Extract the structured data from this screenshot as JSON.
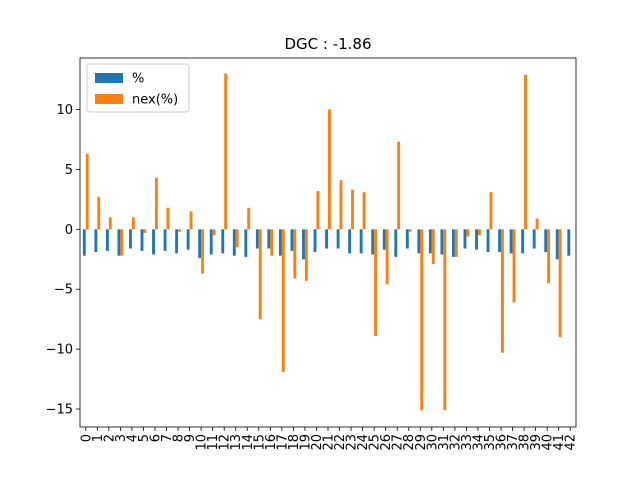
{
  "chart_data": {
    "type": "bar",
    "title": "DGC : -1.86",
    "xlabel": "",
    "ylabel": "",
    "ylim": [
      -16.5,
      14.3
    ],
    "yticks": [
      -15,
      -10,
      -5,
      0,
      5,
      10
    ],
    "ytick_labels": [
      "−15",
      "−10",
      "−5",
      "0",
      "5",
      "10"
    ],
    "grid": false,
    "legend_position": "upper-left",
    "categories": [
      "0",
      "1",
      "2",
      "3",
      "4",
      "5",
      "6",
      "7",
      "8",
      "9",
      "10",
      "11",
      "12",
      "13",
      "14",
      "15",
      "16",
      "17",
      "18",
      "19",
      "20",
      "21",
      "22",
      "23",
      "24",
      "25",
      "26",
      "27",
      "28",
      "29",
      "30",
      "31",
      "32",
      "33",
      "34",
      "35",
      "36",
      "37",
      "38",
      "39",
      "40",
      "41",
      "42"
    ],
    "series": [
      {
        "name": "%",
        "color": "#1f77b4",
        "values": [
          -2.2,
          -1.9,
          -1.8,
          -2.2,
          -1.6,
          -1.8,
          -2.1,
          -1.8,
          -2.0,
          -1.7,
          -2.4,
          -2.1,
          -2.0,
          -2.2,
          -2.3,
          -1.6,
          -1.6,
          -2.2,
          -1.8,
          -2.5,
          -1.9,
          -1.6,
          -1.6,
          -2.0,
          -2.0,
          -2.1,
          -1.7,
          -2.3,
          -1.6,
          -2.0,
          -2.0,
          -2.1,
          -2.3,
          -1.6,
          -1.7,
          -1.9,
          -1.9,
          -2.0,
          -2.0,
          -1.6,
          -1.9,
          -2.5,
          -2.2
        ]
      },
      {
        "name": "nex(%)",
        "color": "#ff7f0e",
        "values": [
          6.3,
          2.7,
          1.0,
          -2.2,
          1.0,
          -0.3,
          4.3,
          1.8,
          -0.2,
          1.5,
          -3.7,
          -0.5,
          13.0,
          -1.5,
          1.8,
          -7.5,
          -2.2,
          -11.9,
          -4.1,
          -4.3,
          3.2,
          10.0,
          4.1,
          3.3,
          3.1,
          -8.9,
          -4.6,
          7.3,
          -0.2,
          -15.1,
          -2.9,
          -15.1,
          -2.3,
          -0.6,
          -0.5,
          3.1,
          -10.3,
          -6.1,
          12.9,
          0.9,
          -4.5,
          -9.0,
          0.0
        ]
      }
    ]
  }
}
